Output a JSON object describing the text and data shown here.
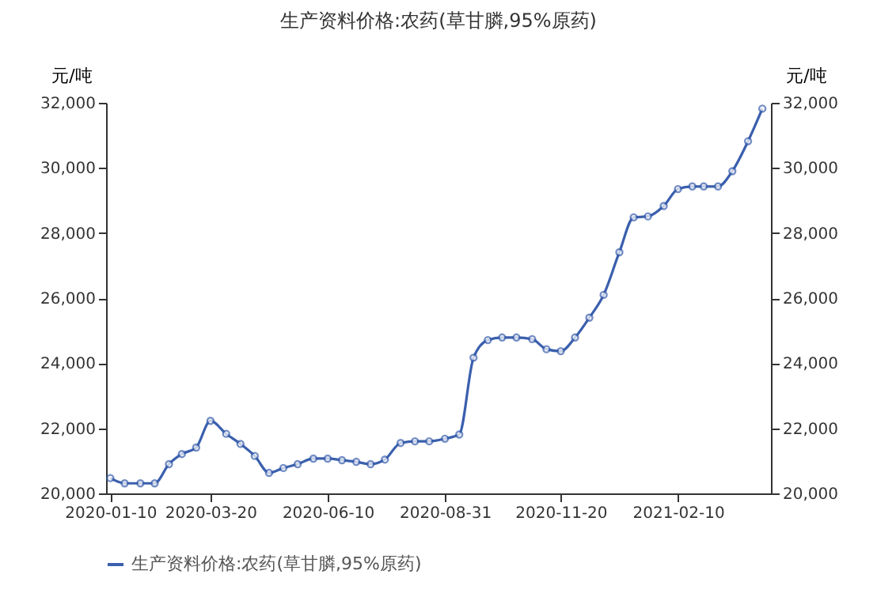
{
  "chart_data": {
    "type": "line",
    "title": "生产资料价格:农药(草甘膦,95%原药)",
    "ylabel": "元/吨",
    "y2label": "元/吨",
    "x": [
      "2020-01-10",
      "2020-01-20",
      "2020-01-31",
      "2020-02-10",
      "2020-02-20",
      "2020-02-29",
      "2020-03-10",
      "2020-03-20",
      "2020-03-31",
      "2020-04-10",
      "2020-04-20",
      "2020-04-30",
      "2020-05-10",
      "2020-05-20",
      "2020-05-31",
      "2020-06-10",
      "2020-06-20",
      "2020-06-30",
      "2020-07-10",
      "2020-07-20",
      "2020-07-31",
      "2020-08-10",
      "2020-08-20",
      "2020-08-31",
      "2020-09-10",
      "2020-09-20",
      "2020-09-30",
      "2020-10-10",
      "2020-10-20",
      "2020-10-31",
      "2020-11-10",
      "2020-11-20",
      "2020-11-30",
      "2020-12-10",
      "2020-12-20",
      "2020-12-31",
      "2021-01-10",
      "2021-01-20",
      "2021-01-31",
      "2021-02-10",
      "2021-02-20",
      "2021-02-28",
      "2021-03-10",
      "2021-03-20",
      "2021-03-31",
      "2021-04-10"
    ],
    "series": [
      {
        "name": "生产资料价格:农药(草甘膦,95%原药)",
        "color": "#3a5fad",
        "values": [
          20470,
          20310,
          20310,
          20310,
          20900,
          21210,
          21410,
          22230,
          21830,
          21520,
          21150,
          20630,
          20780,
          20900,
          21070,
          21070,
          21020,
          20970,
          20900,
          21040,
          21550,
          21600,
          21600,
          21680,
          21810,
          24170,
          24710,
          24790,
          24790,
          24740,
          24430,
          24370,
          24790,
          25400,
          26100,
          27410,
          28480,
          28510,
          28830,
          29350,
          29430,
          29430,
          29430,
          29900,
          30820,
          31820
        ]
      }
    ],
    "xlim": [
      "2020-01-07",
      "2021-04-16"
    ],
    "xticks": [
      {
        "value": "2020-01-10",
        "label": "2020-01-10"
      },
      {
        "value": "2020-03-20",
        "label": "2020-03-20"
      },
      {
        "value": "2020-06-10",
        "label": "2020-06-10"
      },
      {
        "value": "2020-08-31",
        "label": "2020-08-31"
      },
      {
        "value": "2020-11-20",
        "label": "2020-11-20"
      },
      {
        "value": "2021-02-10",
        "label": "2021-02-10"
      }
    ],
    "ylim": [
      20000,
      32000
    ],
    "yticks": [
      {
        "value": 20000,
        "label": "20,000"
      },
      {
        "value": 22000,
        "label": "22,000"
      },
      {
        "value": 24000,
        "label": "24,000"
      },
      {
        "value": 26000,
        "label": "26,000"
      },
      {
        "value": 28000,
        "label": "28,000"
      },
      {
        "value": 30000,
        "label": "30,000"
      },
      {
        "value": 32000,
        "label": "32,000"
      }
    ],
    "y2lim": [
      20000,
      32000
    ],
    "y2ticks": [
      {
        "value": 20000,
        "label": "20,000"
      },
      {
        "value": 22000,
        "label": "22,000"
      },
      {
        "value": 24000,
        "label": "24,000"
      },
      {
        "value": 26000,
        "label": "26,000"
      },
      {
        "value": 28000,
        "label": "28,000"
      },
      {
        "value": 30000,
        "label": "30,000"
      },
      {
        "value": 32000,
        "label": "32,000"
      }
    ],
    "grid": false,
    "legend": "bottom",
    "marker": "circle",
    "line_style": "solid"
  }
}
